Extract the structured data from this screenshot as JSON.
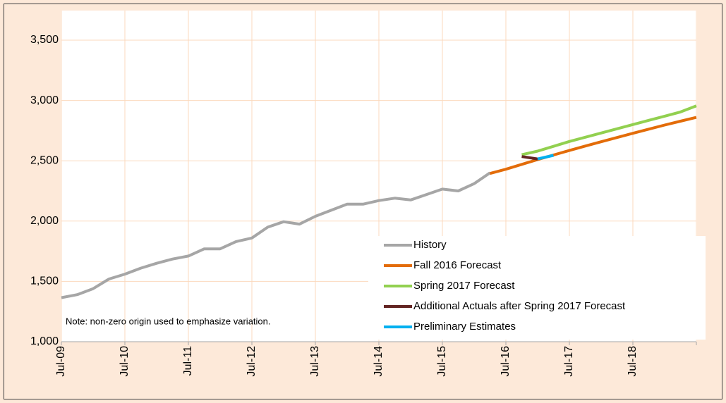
{
  "chart_data": {
    "type": "line",
    "note": "Note: non-zero origin used to emphasize variation.",
    "categories": [
      "Jul-09",
      null,
      null,
      null,
      "Jul-10",
      null,
      null,
      null,
      "Jul-11",
      null,
      null,
      null,
      "Jul-12",
      null,
      null,
      null,
      "Jul-13",
      null,
      null,
      null,
      "Jul-14",
      null,
      null,
      null,
      "Jul-15",
      null,
      null,
      null,
      "Jul-16",
      null,
      null,
      null,
      "Jul-17",
      null,
      null,
      null,
      "Jul-18",
      null,
      null,
      null,
      null
    ],
    "series": [
      {
        "name": "History",
        "color": "#a6a6a6",
        "values": [
          1365,
          1390,
          1440,
          1520,
          1560,
          1610,
          1650,
          1685,
          1710,
          1770,
          1770,
          1830,
          1860,
          1950,
          1995,
          1975,
          2040,
          2090,
          2140,
          2140,
          2170,
          2190,
          2175,
          2220,
          2265,
          2250,
          2310,
          2400,
          null,
          null,
          null,
          null,
          null,
          null,
          null,
          null,
          null,
          null,
          null,
          null,
          null
        ]
      },
      {
        "name": "Fall 2016 Forecast",
        "color": "#e36c09",
        "values": [
          null,
          null,
          null,
          null,
          null,
          null,
          null,
          null,
          null,
          null,
          null,
          null,
          null,
          null,
          null,
          null,
          null,
          null,
          null,
          null,
          null,
          null,
          null,
          null,
          null,
          null,
          null,
          2395,
          2430,
          2470,
          2510,
          2548,
          2585,
          2622,
          2658,
          2693,
          2728,
          2762,
          2796,
          2828,
          2860
        ]
      },
      {
        "name": "Spring 2017 Forecast",
        "color": "#92d050",
        "values": [
          null,
          null,
          null,
          null,
          null,
          null,
          null,
          null,
          null,
          null,
          null,
          null,
          null,
          null,
          null,
          null,
          null,
          null,
          null,
          null,
          null,
          null,
          null,
          null,
          null,
          null,
          null,
          null,
          null,
          2550,
          2580,
          2620,
          2660,
          2695,
          2730,
          2765,
          2800,
          2835,
          2870,
          2905,
          2955
        ]
      },
      {
        "name": "Additional Actuals after Spring 2017 Forecast",
        "color": "#632523",
        "values": [
          null,
          null,
          null,
          null,
          null,
          null,
          null,
          null,
          null,
          null,
          null,
          null,
          null,
          null,
          null,
          null,
          null,
          null,
          null,
          null,
          null,
          null,
          null,
          null,
          null,
          null,
          null,
          null,
          null,
          2535,
          2515,
          null,
          null,
          null,
          null,
          null,
          null,
          null,
          null,
          null,
          null
        ]
      },
      {
        "name": "Preliminary Estimates",
        "color": "#00b0f0",
        "values": [
          null,
          null,
          null,
          null,
          null,
          null,
          null,
          null,
          null,
          null,
          null,
          null,
          null,
          null,
          null,
          null,
          null,
          null,
          null,
          null,
          null,
          null,
          null,
          null,
          null,
          null,
          null,
          null,
          null,
          null,
          2515,
          2545,
          null,
          null,
          null,
          null,
          null,
          null,
          null,
          null,
          null
        ]
      }
    ],
    "ylim": [
      1000,
      3500
    ],
    "yticks": [
      {
        "value": 1000,
        "label": "1,000"
      },
      {
        "value": 1500,
        "label": "1,500"
      },
      {
        "value": 2000,
        "label": "2,000"
      },
      {
        "value": 2500,
        "label": "2,500"
      },
      {
        "value": 3000,
        "label": "3,000"
      },
      {
        "value": 3500,
        "label": "3,500"
      }
    ],
    "grid": true,
    "legend": "lower right"
  }
}
